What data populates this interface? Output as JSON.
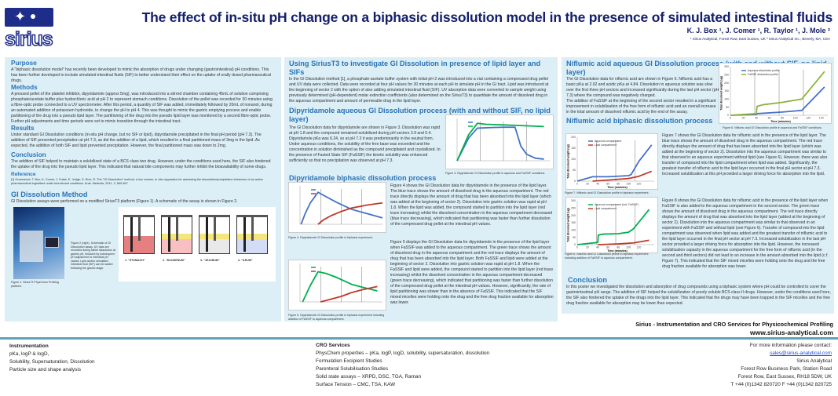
{
  "header": {
    "logo_text": "sirius",
    "title": "The effect of in-situ pH change on a biphasic dissolution model in the presence of simulated intestinal fluids",
    "authors": "K. J. Box ¹, J. Comer ¹, R. Taylor ¹, J. Mole ²",
    "affiliations": "¹ Sirius Analytical, Forest Row, East Sussex, UK ² Sirius Analytical Inc., Beverly, MA, USA"
  },
  "col1": {
    "purpose_h": "Purpose",
    "purpose": "A \"biphasic dissolution model\" has recently been developed to mimic the absorption of drugs under changing (gastrointestinal) pH conditions. This has been further developed to include simulated intestinal fluids (SIF) to better understand their effect on the uptake of orally dosed pharmaceutical drugs.",
    "methods_h": "Methods",
    "methods": "A pressed pellet of the platelet inhibitor, dipyridamole (approx 5mg), was introduced into a stirred chamber containing 45mL of solution comprising phosphate/acetate buffer plus hydrochloric acid at pH 2 to represent stomach conditions. Dissolution of the pellet was recorded for 30 minutes using a fibre-optic probe connected to a UV spectrometer. After this period, a quantity of SIF was added, immediately followed by 20mL of nonanol, during an automated addition of potassium hydroxide, to change the pH to pH 4. This was thought to mimic the gastric emptying process and enable partitioning of the drug into a pseudo lipid layer. The partitioning of the drug into the pseudo lipid layer was monitored by a second fibre-optic probe. Further pH adjustments and time periods were set to mimic transition through the intestinal tract.",
    "results_h": "Results",
    "results": "Under standard GI Dissolution conditions (in-situ pH change, but no SIF or lipid), dipyridamole precipitated in the final pH period (pH 7.3). The addition of SIF prevented precipitation at pH 7.3, as did the addition of a lipid, which resulted in a final partitioned mass of 3mg in the lipid. As expected, the addition of both SIF and lipid prevented precipitation. However, the final partitioned mass was down to 2mg.",
    "conclusion_h": "Conclusion",
    "conclusion": "The addition of SIF helped to maintain a solubilized state of a BCS class two drug. However, under the conditions used here, the SIF also hindered the uptake of the drug into the pseudo lipid layer. This indicated that natural bile components may further inhibit the bioavailability of some drugs.",
    "reference_h": "Reference",
    "reference": "[1] Gravestock, T. Box, K. Comer, J. Frake, E. Judge, S. Ruiz, R. The \"GI Dissolution\" method: a low volume, in vitro apparatus for assessing the dissolution/precipitation behaviour of an active pharmaceutical ingredient under biorelevant conditions. Anal. Methods, 2011, 3, 560-567",
    "gi_h": "GI Dissolution Method",
    "gi": "GI Dissolution assays were performed on a modified SiriusT3 platform (Figure 1). A schematic of the assay is shown in Figure 2.",
    "fig1_cap": "Figure 1. SiriusT3 PhysChem Profiling platform.",
    "fig2_cap": "Figure 2 (right). Schematic of GI Dissolution assay. UV data are recorded during tablet dissolution at gastric pH, followed by subsequent pH adjustment to intestinal pH values. Lipid and/or simulated intestinal fluid (SIF) can be added following the gastric stage.",
    "stages": [
      "1. \"STOMACH\"",
      "2. \"DUODENUM\"",
      "3. \"JEJUNUM\"",
      "4. \"ILEUM\""
    ]
  },
  "col2": {
    "using_h": "Using SiriusT3 to investigate GI Dissolution in presence of lipid layer and SIFs",
    "using": "In the GI Dissolution method [1], a phosphate-acetate buffer system with initial pH 2 was introduced into a vial containing a compressed drug pellet and UV data were collected. Data were recorded at four pH values for 30 minutes at each pH to simulate pH in the GI tract. Lipid was introduced at the beginning of sector 2 with the option of also adding simulated intestinal fluid (SIF). UV absorption data were converted to sample weight using previously determined (pH-dependent) molar extinction coefficients (also determined on the SiriusT3) to quantitate the amount of dissolved drug in the aqueous compartment and amount of permeable drug in the lipid layer.",
    "dipaq_h": "Dipyridamole aqueous GI Dissolution process (with and without SIF, no lipid layer)",
    "dipaq": "The GI Dissolution data for dipyridamole are shown in Figure 3. Dissolution was rapid at pH 1.8 and the compound remained solubilized during pH sectors 3.9 and 5.4. Dipyridamole pKa was 6.24, so at pH 7.3 it was predominantly in the neutral form. Under aqueous conditions, the solubility of the free base was exceeded and the concentration in solution diminished as the compound precipitated and crystallized. In the presence of Fasted State SIF (FaSSIF) the kinetic solubility was enhanced sufficiently so that no precipitation was observed at pH 7.3.",
    "fig3_cap": "Figure 3. Dipyridamole GI Dissolution profile in aqueous and FaSSIF conditions.",
    "dipbi_h": "Dipyridamole biphasic dissolution process",
    "fig4_text": "Figure 4 shows the GI Dissolution data for dipyridamole in the presence of the lipid layer. The blue trace shows the amount of dissolved drug in the aqueous compartment. The red trace directly displays the amount of drug that has been absorbed into the lipid layer (which was added at the beginning of sector 2). Dissolution into gastric solution was rapid at pH 1.8. When the lipid was added, the compound started to partition into the lipid layer (red trace increasing) whilst the dissolved concentration in the aqueous compartment decreased (blue trace decreasing), which indicated that partitioning was faster than further dissolution of the compressed drug pellet at the intestinal pH values.",
    "fig4_cap": "Figure 4. Dipyridamole GI Dissolution profile in biphasic experiment.",
    "fig5_text": "Figure 5 displays the GI Dissolution data for dipyridamole in the presence of the lipid layer when FaSSIF was added to the aqueous compartment. The green trace shows the amount of dissolved drug in the aqueous compartment and the red trace displays the amount of drug that has been absorbed into the lipid layer. Both FaSSIF and lipid were added at the beginning of sector 2. Dissolution into gastric solution was rapid at pH 1.8. When the FaSSIF and lipid were added, the compound started to partition into the lipid layer (red trace increasing) whilst the dissolved concentration in the aqueous compartment decreased (green trace decreasing), which indicated that partitioning was faster than further dissolution of the compressed drug pellet at the intestinal pH values. However, significantly, the rate of lipid partitioning was slower than in the absence of FaSSIF. This indicated that the SIF mixed micelles were holding onto the drug and the free drug fraction available for absorption was lower.",
    "fig5_cap": "Figure 5. Dipyridamole GI Dissolution profile in biphasic experiment including addition of FaSSIF to aqueous compartment."
  },
  "col3": {
    "nifaq_h": "Niflumic acid aqueous GI Dissolution process (with and without SIF, no lipid layer)",
    "nifaq1": "The GI Dissolution data for niflumic acid are shown in Figure 6. Niflumic acid has a basic pKa at 2.02 and acidic pKa at 4.84. Dissolution in aqueous solution was slow over the first three pH sectors and increased significantly during the last pH sector (pH 7.3) where the compound was negatively charged.",
    "nifaq2": "The addition of FaSSIF at the beginning of the second sector resulted in a significant improvement in solubilisation of the free form of niflumic acid and an overall increase in the total amount of dissolved niflumic acid by the end of the assay.",
    "fig6_cap": "Figure 6. Niflumic acid GI Dissolution profile in aqueous and FaSSIF conditions.",
    "nifbi_h": "Niflumic acid biphasic dissolution process",
    "fig7_text": "Figure 7 shows the GI Dissolution data for niflumic acid in the presence of the lipid layer. The blue trace shows the amount of dissolved drug in the aqueous compartment. The red trace directly displays the amount of drug that has been absorbed into the lipid layer (which was added at the beginning of sector 2). Dissolution into the aqueous compartment was similar to that observed in an aqueous experiment without lipid (see Figure 6). However, there was also transfer of compound into the lipid compartment when lipid was added. Significantly, the greatest transfer of niflumic acid to the lipid layer occurred in the final pH sector at pH 7.3. Increased solubilization at this pH provided a larger driving force for absorption into the lipid.",
    "fig7_cap": "Figure 7. Niflumic acid GI Dissolution profile in biphasic experiment.",
    "fig8_text": "Figure 8 shows the GI Dissolution data for niflumic acid in the presence of the lipid layer when FaSSIF is also added to the aqueous compartment in the second sector. The green trace shows the amount of dissolved drug in the aqueous compartment. The red trace directly displays the amount of drug that was absorbed into the lipid layer (added at the beginning of sector 2). Dissolution into the aqueous compartment was similar to that observed in an experiment with FaSSIF and without lipid (see Figure 6). Transfer of compound into the lipid compartment was observed when lipid was added and the greatest transfer of niflumic acid to the lipid layer occurred in the final pH sector at pH 7.3. Increased solubilization in the last pH sector provided a larger driving force for absorption into the lipid. However, the increased solubilization capacity in the aqueous compartment for the free form of niflumic acid (in the second and third sectors) did not lead to an increase in the amount absorbed into the lipid (c.f. Figure 7). This indicated that the SIF mixed micelles were holding onto the drug and the free drug fraction available for absorption was lower.",
    "fig8_cap": "Figure 8. Niflumic acid GI Dissolution profile in biphasic experiment including addition of FaSSIF to aqueous compartment.",
    "conc_h": "Conclusion",
    "conc": "In this poster we investigated the dissolution and absorption of drug compounds using a biphasic system where pH could be controlled to cover the gastrointestinal pH range. The addition of SIF helped the solubilization of poorly soluble BCS class II drugs. However, under the conditions used here, the SIF also hindered the uptake of the drugs into the lipid layer. This indicated that the drugs may have been trapped in the SIF micelles and the free drug fraction available for absorption may be lower than expected.",
    "tagline": "Sirius - Instrumentation and CRO Services for Physicochemical Profiling",
    "website": "www.sirius-analytical.com"
  },
  "footer": {
    "instr_h": "Instrumentation",
    "instr": [
      "pKa, logP & logD,",
      "Solubility, Supersaturation, Dissolution",
      "Particle size and shape analysis"
    ],
    "cro_h": "CRO Services",
    "cro": [
      "PhysChem properties – pKa, logP, logD, solubility, supersaturation, dissolution",
      "Formulation Excipient Studies",
      "Parenteral Solubilisation Studies",
      "Solid state assays – XRPD, DSC, TGA, Raman",
      "Surface Tension – CMC, TSA, KAW"
    ],
    "contact": [
      "For more information please contact:",
      "sales@sirius-analytical.com",
      "Sirius Analytical",
      "Forest Row Business Park, Station Road",
      "Forest Row, East Sussex, RH18 5DW, UK",
      "T +44 (0)1342 820720 F +44 (0)1342 820725"
    ]
  },
  "colors": {
    "title": "#14206b",
    "heading": "#2b74b8",
    "panel": "#dceef6",
    "aqueous": "#4472c4",
    "fassif": "#00b050",
    "lipid": "#c0392b",
    "niflumic_fassif": "#8db33a"
  },
  "chart_data": [
    {
      "id": "fig3",
      "type": "line",
      "xlim": [
        0,
        160
      ],
      "ylim": [
        0,
        130
      ],
      "series": [
        {
          "color": "#4472c4",
          "x": [
            0,
            10,
            20,
            35,
            60,
            80,
            100,
            104,
            110,
            120,
            135,
            150
          ],
          "y": [
            0,
            35,
            70,
            100,
            102,
            103,
            103,
            80,
            45,
            20,
            8,
            5
          ]
        },
        {
          "color": "#00b050",
          "x": [
            0,
            10,
            20,
            35,
            50,
            80,
            110,
            150
          ],
          "y": [
            0,
            40,
            80,
            115,
            112,
            110,
            108,
            105
          ]
        }
      ]
    },
    {
      "id": "fig4",
      "type": "line",
      "xlim": [
        0,
        160
      ],
      "ylim": [
        0,
        90
      ],
      "series": [
        {
          "color": "#4472c4",
          "x": [
            2,
            10,
            20,
            35,
            50,
            70,
            100,
            130,
            160
          ],
          "y": [
            0,
            25,
            50,
            75,
            65,
            52,
            35,
            25,
            15
          ]
        },
        {
          "color": "#c0392b",
          "x": [
            35,
            45,
            60,
            80,
            100,
            130,
            160
          ],
          "y": [
            0,
            10,
            20,
            30,
            38,
            45,
            50
          ]
        }
      ]
    },
    {
      "id": "fig5",
      "type": "line",
      "xlim": [
        0,
        160
      ],
      "ylim": [
        0,
        70
      ],
      "series": [
        {
          "color": "#00b050",
          "x": [
            5,
            20,
            35,
            50,
            70,
            100,
            120,
            150
          ],
          "y": [
            0,
            30,
            55,
            52,
            45,
            32,
            27,
            20
          ]
        },
        {
          "color": "#c0392b",
          "x": [
            40,
            60,
            80,
            100,
            120,
            150
          ],
          "y": [
            0,
            5,
            10,
            17,
            22,
            28
          ]
        }
      ]
    },
    {
      "id": "fig6",
      "type": "line",
      "xlim": [
        0,
        150
      ],
      "ylim": [
        0,
        300
      ],
      "yticks": [
        0,
        50,
        100,
        150,
        200,
        250,
        300
      ],
      "xticks": [
        0,
        20,
        40,
        60,
        80,
        100,
        120,
        140
      ],
      "xlabel": "Time (minutes)",
      "ylabel": "Total dissolved weight (ug)",
      "series": [
        {
          "name": "Aqueous dissolution profile",
          "color": "#4472c4",
          "x": [
            0,
            40,
            41,
            80,
            110,
            145
          ],
          "y": [
            0,
            5,
            10,
            20,
            30,
            175
          ]
        },
        {
          "name": "FaSSIF dissolution profile",
          "color": "#8db33a",
          "x": [
            0,
            40,
            41,
            50,
            80,
            110,
            145
          ],
          "y": [
            0,
            10,
            55,
            65,
            80,
            100,
            270
          ]
        }
      ]
    },
    {
      "id": "fig7",
      "type": "line",
      "xlim": [
        0,
        150
      ],
      "ylim": [
        0,
        200
      ],
      "yticks": [
        0,
        50,
        100,
        150,
        200
      ],
      "xticks": [
        0,
        20,
        40,
        60,
        80,
        100,
        120
      ],
      "xlabel": "Time (minutes)",
      "ylabel": "Total dissolved weight (ug)",
      "series": [
        {
          "name": "Aqueous compartment",
          "color": "#4472c4",
          "x": [
            0,
            30,
            60,
            100,
            105,
            120,
            145
          ],
          "y": [
            0,
            20,
            20,
            25,
            30,
            90,
            165
          ]
        },
        {
          "name": "Lipid compartment",
          "color": "#c0392b",
          "x": [
            30,
            60,
            100,
            120,
            145
          ],
          "y": [
            0,
            5,
            12,
            22,
            45
          ]
        }
      ]
    },
    {
      "id": "fig8",
      "type": "line",
      "xlim": [
        0,
        150
      ],
      "ylim": [
        0,
        300
      ],
      "yticks": [
        0,
        50,
        100,
        150,
        200,
        250,
        300
      ],
      "xticks": [
        0,
        20,
        40,
        60,
        80,
        100,
        120
      ],
      "xlabel": "Time (minutes)",
      "ylabel": "Total dissolved weight (ug)",
      "series": [
        {
          "name": "Aqueous compartment (incl. FaSSIF)",
          "color": "#00b050",
          "x": [
            0,
            40,
            41,
            50,
            80,
            100,
            110,
            140
          ],
          "y": [
            0,
            15,
            65,
            72,
            75,
            85,
            110,
            240
          ]
        },
        {
          "name": "Lipid compartment",
          "color": "#c0392b",
          "x": [
            40,
            80,
            110,
            140
          ],
          "y": [
            0,
            5,
            12,
            30
          ]
        }
      ]
    }
  ]
}
